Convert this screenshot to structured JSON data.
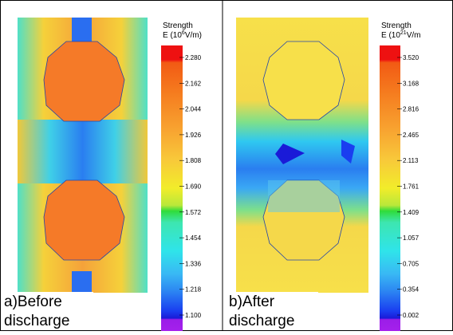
{
  "panels": [
    {
      "header": "Strength",
      "unit_prefix": "E (10",
      "unit_exponent": "6",
      "unit_suffix": "V/m)",
      "caption": [
        "a)Before",
        "discharge"
      ],
      "scale_labels": [
        "2.280",
        "2.162",
        "2.044",
        "1.926",
        "1.808",
        "1.690",
        "1.572",
        "1.454",
        "1.336",
        "1.218",
        "1.100"
      ]
    },
    {
      "header": "Strength",
      "unit_prefix": "E (10",
      "unit_exponent": "21",
      "unit_suffix": "V/m",
      "caption": [
        "b)After",
        "discharge"
      ],
      "scale_labels": [
        "3.520",
        "3.168",
        "2.816",
        "2.465",
        "2.113",
        "1.761",
        "1.409",
        "1.057",
        "0.705",
        "0.354",
        "0.002"
      ]
    }
  ]
}
